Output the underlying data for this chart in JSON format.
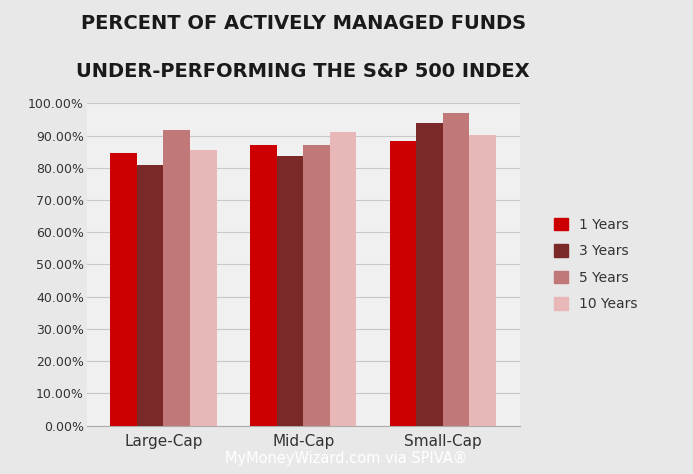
{
  "title_line1": "PERCENT OF ACTIVELY MANAGED FUNDS",
  "title_line2": "UNDER-PERFORMING THE S&P 500 INDEX",
  "categories": [
    "Large-Cap",
    "Mid-Cap",
    "Small-Cap"
  ],
  "series": {
    "1 Years": [
      0.845,
      0.872,
      0.882
    ],
    "3 Years": [
      0.81,
      0.836,
      0.938
    ],
    "5 Years": [
      0.917,
      0.872,
      0.97
    ],
    "10 Years": [
      0.854,
      0.91,
      0.902
    ]
  },
  "colors": {
    "1 Years": "#cc0000",
    "3 Years": "#7a2828",
    "5 Years": "#c07878",
    "10 Years": "#e8b8b8"
  },
  "ylim": [
    0.0,
    1.0
  ],
  "yticks": [
    0.0,
    0.1,
    0.2,
    0.3,
    0.4,
    0.5,
    0.6,
    0.7,
    0.8,
    0.9,
    1.0
  ],
  "yticklabels": [
    "0.00%",
    "10.00%",
    "20.00%",
    "30.00%",
    "40.00%",
    "50.00%",
    "60.00%",
    "70.00%",
    "80.00%",
    "90.00%",
    "100.00%"
  ],
  "background_color": "#e8e8e8",
  "plot_area_color": "#f0f0f0",
  "footer_text": "MyMoneyWizard.com via SPIVA®",
  "footer_bg": "#9b3535",
  "footer_text_color": "#ffffff",
  "title_fontsize": 14,
  "tick_fontsize": 9,
  "legend_fontsize": 10,
  "xlabel_fontsize": 11,
  "bar_width": 0.19
}
